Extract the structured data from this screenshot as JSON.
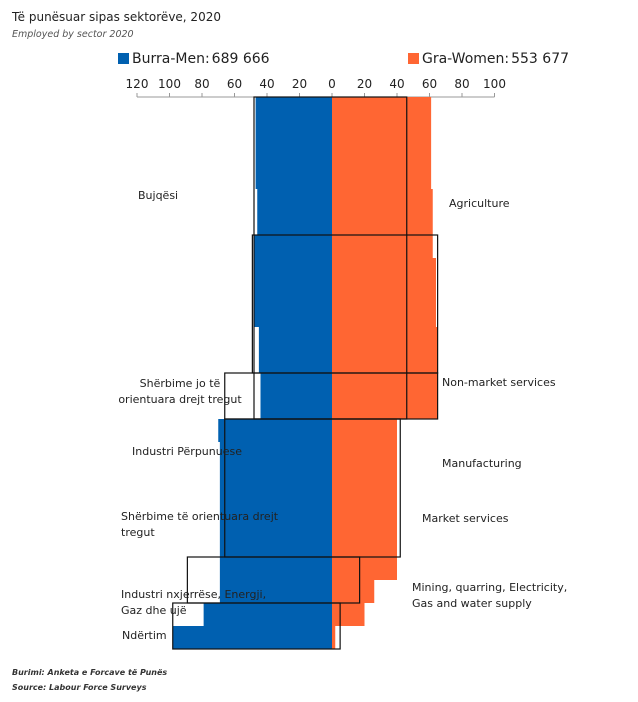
{
  "title": "Të punësuar sipas sektorëve, 2020",
  "subtitle": "Employed by sector 2020",
  "legend": {
    "men_label": "Burra-Men:",
    "men_value": "689 666",
    "women_label": "Gra-Women:",
    "women_value": "553 677"
  },
  "source": {
    "sq": "Burimi: Anketa e Forcave të Punës",
    "en": "Source: Labour Force Surveys"
  },
  "chart_data": {
    "type": "bar",
    "orientation": "horizontal population-pyramid",
    "x_axis_ticks": [
      "120",
      "100",
      "80",
      "60",
      "40",
      "20",
      "0",
      "20",
      "40",
      "60",
      "80",
      "100"
    ],
    "xlim": [
      -120,
      100
    ],
    "categories": [
      {
        "label_sq": "Bujqësi",
        "label_en": "Agriculture"
      },
      {
        "label_sq": "Shërbime jo të orientuara drejt tregut",
        "label_en": "Non-market services"
      },
      {
        "label_sq": "Industri Përpunuese",
        "label_en": "Manufacturing"
      },
      {
        "label_sq": "Shërbime të orientuara drejt tregut",
        "label_en": "Market services"
      },
      {
        "label_sq": "Industri nxjerrëse, Energji, Gaz dhe ujë",
        "label_en": "Mining, quarring, Electricity, Gas and water supply"
      },
      {
        "label_sq": "Ndërtim",
        "label_en": ""
      }
    ],
    "series": [
      {
        "name": "Burra-Men",
        "color": "#0060b0",
        "steps": [
          {
            "from": 0,
            "to": 4,
            "value": 47
          },
          {
            "from": 4,
            "to": 6,
            "value": 46
          },
          {
            "from": 6,
            "to": 10,
            "value": 48
          },
          {
            "from": 10,
            "to": 12,
            "value": 45
          },
          {
            "from": 12,
            "to": 14,
            "value": 44
          },
          {
            "from": 14,
            "to": 15,
            "value": 70
          },
          {
            "from": 15,
            "to": 21,
            "value": 69
          },
          {
            "from": 21,
            "to": 22,
            "value": 69
          },
          {
            "from": 22,
            "to": 23,
            "value": 79
          },
          {
            "from": 23,
            "to": 24,
            "value": 98
          }
        ]
      },
      {
        "name": "Gra-Women",
        "color": "#ff6633",
        "steps": [
          {
            "from": 0,
            "to": 4,
            "value": 61
          },
          {
            "from": 4,
            "to": 5,
            "value": 62
          },
          {
            "from": 5,
            "to": 7,
            "value": 62
          },
          {
            "from": 7,
            "to": 10,
            "value": 64
          },
          {
            "from": 10,
            "to": 12,
            "value": 65
          },
          {
            "from": 12,
            "to": 14,
            "value": 65
          },
          {
            "from": 14,
            "to": 16,
            "value": 40
          },
          {
            "from": 16,
            "to": 21,
            "value": 40
          },
          {
            "from": 21,
            "to": 22,
            "value": 26
          },
          {
            "from": 22,
            "to": 23,
            "value": 20
          },
          {
            "from": 23,
            "to": 24,
            "value": 2
          }
        ]
      }
    ],
    "outline_boxes": [
      {
        "left": 48,
        "right": 46,
        "from": 0,
        "to": 14
      },
      {
        "left": 49,
        "right": 65,
        "from": 6,
        "to": 12
      },
      {
        "left": 66,
        "right": 65,
        "from": 12,
        "to": 14
      },
      {
        "left": 66,
        "right": 42,
        "from": 14,
        "to": 20
      },
      {
        "left": 89,
        "right": 17,
        "from": 20,
        "to": 22
      },
      {
        "left": 98,
        "right": 5,
        "from": 22,
        "to": 24
      }
    ],
    "legend_position": "top",
    "grid": false
  }
}
